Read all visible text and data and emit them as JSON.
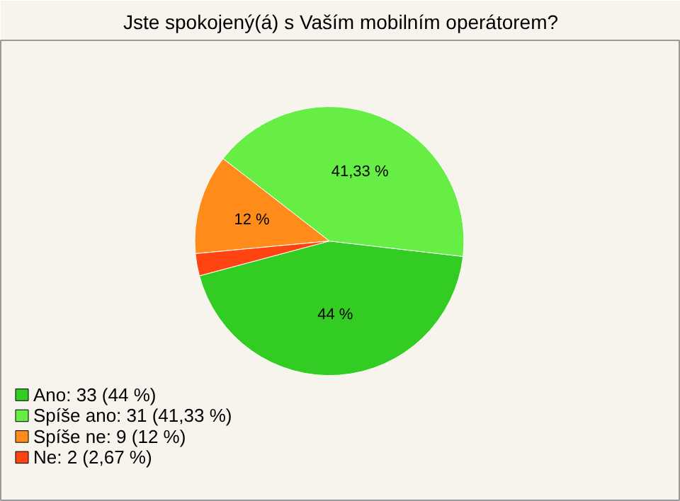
{
  "chart_data": {
    "type": "pie",
    "title": "Jste spokojený(á) s Vaším mobilním operátorem?",
    "categories": [
      "Ano: 33 (44 %)",
      "Spíše ano: 31 (41,33 %)",
      "Spíše ne: 9 (12 %)",
      "Ne: 2 (2,67 %)"
    ],
    "values": [
      44,
      41.33,
      12,
      2.67
    ],
    "colors": [
      "#33cc22",
      "#66ee44",
      "#ff8c1a",
      "#ff4411"
    ],
    "value_labels": [
      "44 %",
      "41,33 %",
      "12 %",
      null
    ],
    "legend": "bottom left"
  }
}
